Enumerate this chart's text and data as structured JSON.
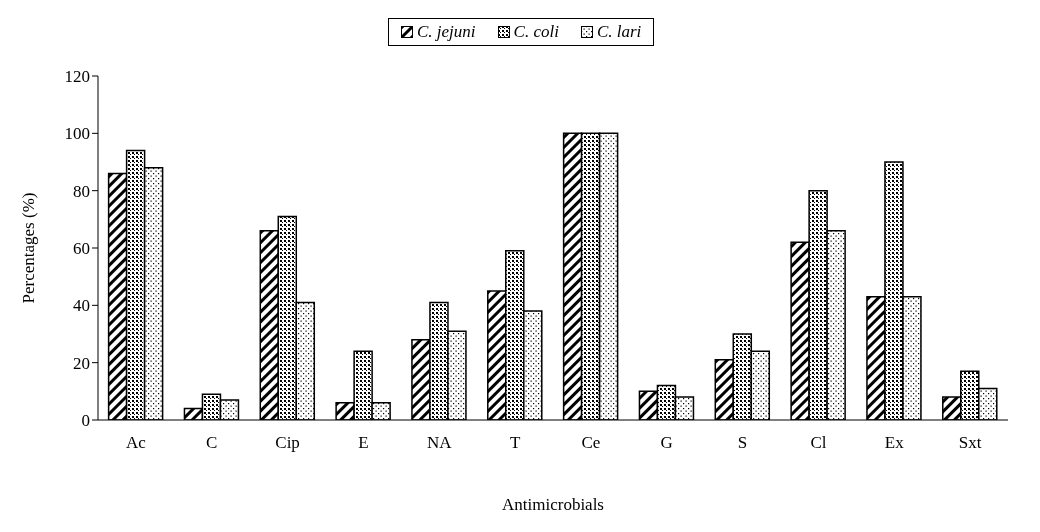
{
  "chart_data": {
    "type": "bar",
    "xlabel": "Antimicrobials",
    "ylabel": "Percentages (%)",
    "categories": [
      "Ac",
      "C",
      "Cip",
      "E",
      "NA",
      "T",
      "Ce",
      "G",
      "S",
      "Cl",
      "Ex",
      "Sxt"
    ],
    "series": [
      {
        "name": "C. jejuni",
        "color": "#000000",
        "values": [
          86,
          4,
          66,
          6,
          28,
          45,
          100,
          10,
          21,
          62,
          43,
          8
        ]
      },
      {
        "name": "C. coli",
        "color": "#000000",
        "values": [
          94,
          9,
          71,
          24,
          41,
          59,
          100,
          12,
          30,
          80,
          90,
          17
        ]
      },
      {
        "name": "C. lari",
        "color": "#000000",
        "values": [
          88,
          7,
          41,
          6,
          31,
          38,
          100,
          8,
          24,
          66,
          43,
          11
        ]
      }
    ],
    "ylim": [
      0,
      120
    ],
    "yticks": [
      0,
      20,
      40,
      60,
      80,
      100,
      120
    ],
    "legend": "top"
  }
}
